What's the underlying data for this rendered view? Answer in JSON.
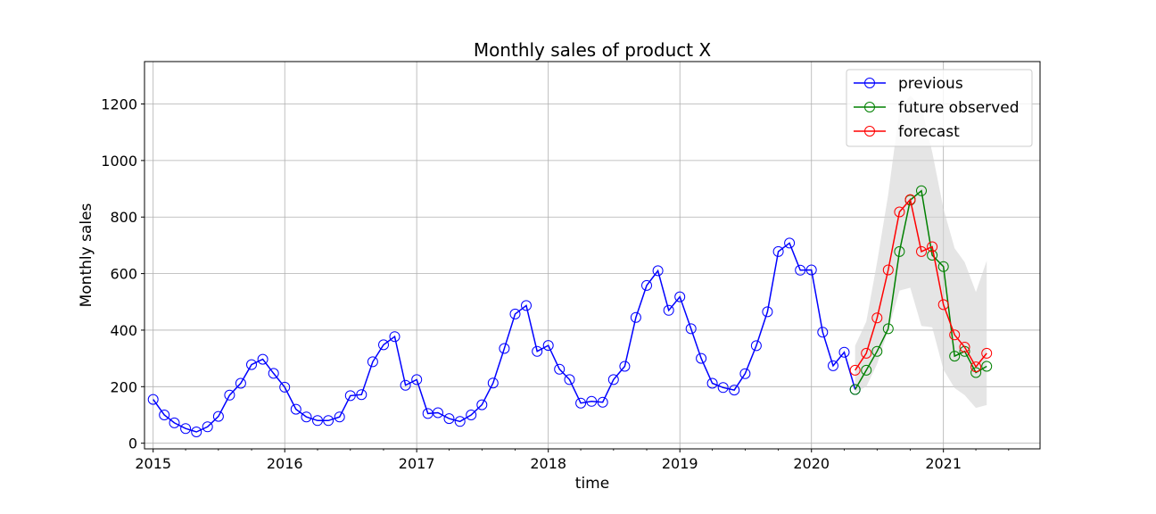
{
  "chart_data": {
    "type": "line",
    "title": "Monthly sales of product X",
    "xlabel": "time",
    "ylabel": "Monthly sales",
    "ylim": [
      -20,
      1350
    ],
    "xlim": [
      "2014-12-08",
      "2021-09-26"
    ],
    "x_ticks": [
      "2015",
      "2016",
      "2017",
      "2018",
      "2019",
      "2020",
      "2021"
    ],
    "y_ticks": [
      0,
      200,
      400,
      600,
      800,
      1000,
      1200
    ],
    "grid": true,
    "legend_position": "top-right",
    "series": [
      {
        "name": "previous",
        "color": "#0000ff",
        "marker": "open-circle",
        "x": [
          "2015-01",
          "2015-02",
          "2015-03",
          "2015-04",
          "2015-05",
          "2015-06",
          "2015-07",
          "2015-08",
          "2015-09",
          "2015-10",
          "2015-11",
          "2015-12",
          "2016-01",
          "2016-02",
          "2016-03",
          "2016-04",
          "2016-05",
          "2016-06",
          "2016-07",
          "2016-08",
          "2016-09",
          "2016-10",
          "2016-11",
          "2016-12",
          "2017-01",
          "2017-02",
          "2017-03",
          "2017-04",
          "2017-05",
          "2017-06",
          "2017-07",
          "2017-08",
          "2017-09",
          "2017-10",
          "2017-11",
          "2017-12",
          "2018-01",
          "2018-02",
          "2018-03",
          "2018-04",
          "2018-05",
          "2018-06",
          "2018-07",
          "2018-08",
          "2018-09",
          "2018-10",
          "2018-11",
          "2018-12",
          "2019-01",
          "2019-02",
          "2019-03",
          "2019-04",
          "2019-05",
          "2019-06",
          "2019-07",
          "2019-08",
          "2019-09",
          "2019-10",
          "2019-11",
          "2019-12",
          "2020-01",
          "2020-02",
          "2020-03",
          "2020-04",
          "2020-05"
        ],
        "y": [
          155,
          100,
          72,
          52,
          40,
          58,
          95,
          170,
          212,
          278,
          297,
          247,
          198,
          120,
          93,
          80,
          80,
          93,
          168,
          172,
          288,
          348,
          377,
          205,
          225,
          105,
          108,
          87,
          77,
          100,
          136,
          213,
          335,
          457,
          487,
          325,
          346,
          262,
          225,
          142,
          148,
          145,
          225,
          272,
          445,
          558,
          610,
          470,
          518,
          405,
          300,
          212,
          197,
          188,
          246,
          345,
          465,
          678,
          708,
          612,
          613,
          393,
          274,
          322,
          190
        ]
      },
      {
        "name": "future observed",
        "color": "#008000",
        "marker": "open-circle",
        "x": [
          "2020-05",
          "2020-06",
          "2020-07",
          "2020-08",
          "2020-09",
          "2020-10",
          "2020-11",
          "2020-12",
          "2021-01",
          "2021-02",
          "2021-03",
          "2021-04",
          "2021-05"
        ],
        "y": [
          190,
          258,
          325,
          405,
          678,
          860,
          893,
          665,
          625,
          308,
          325,
          250,
          272
        ]
      },
      {
        "name": "forecast",
        "color": "#ff0000",
        "marker": "open-circle",
        "x": [
          "2020-05",
          "2020-06",
          "2020-07",
          "2020-08",
          "2020-09",
          "2020-10",
          "2020-11",
          "2020-12",
          "2021-01",
          "2021-02",
          "2021-03",
          "2021-04",
          "2021-05"
        ],
        "y": [
          258,
          318,
          443,
          613,
          818,
          862,
          678,
          695,
          490,
          383,
          340,
          270,
          318
        ]
      }
    ],
    "confidence_band": {
      "color": "#d3d3d3",
      "x": [
        "2020-05",
        "2020-06",
        "2020-07",
        "2020-08",
        "2020-09",
        "2020-10",
        "2020-11",
        "2020-12",
        "2021-01",
        "2021-02",
        "2021-03",
        "2021-04",
        "2021-05"
      ],
      "lower": [
        180,
        200,
        280,
        400,
        540,
        550,
        415,
        410,
        260,
        195,
        170,
        125,
        135
      ],
      "upper": [
        345,
        430,
        640,
        880,
        1180,
        1230,
        1190,
        1030,
        830,
        690,
        640,
        535,
        645
      ]
    }
  }
}
